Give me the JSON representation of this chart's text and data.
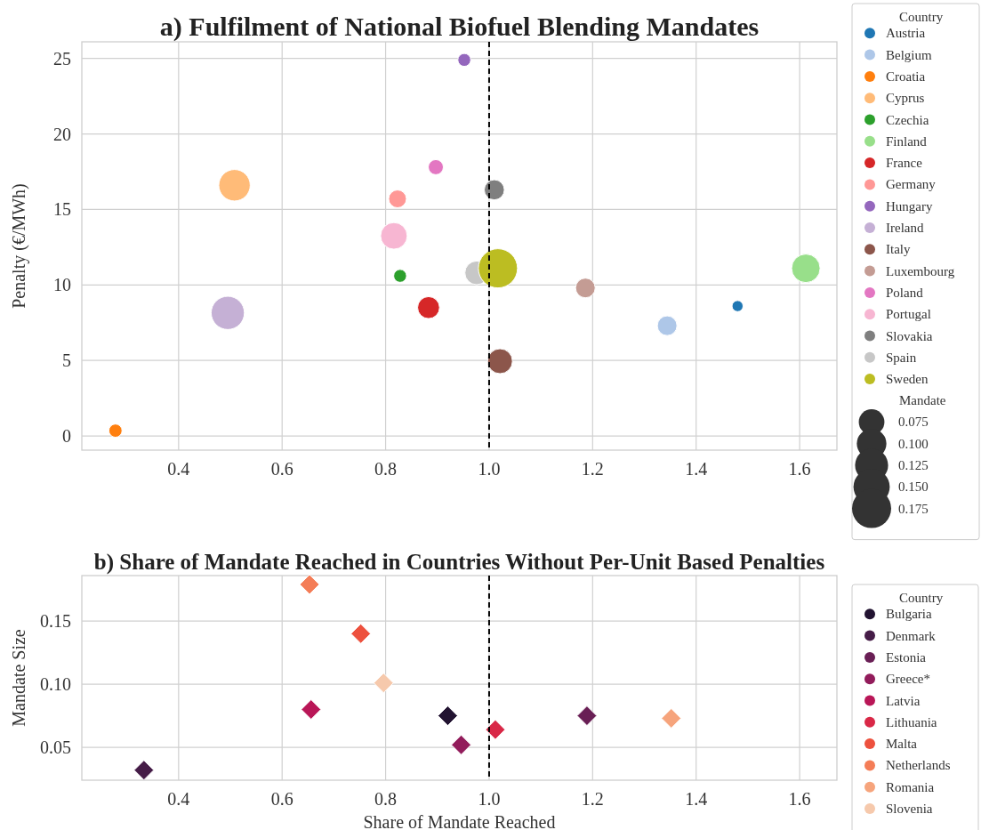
{
  "chart_data": [
    {
      "type": "bubble",
      "title": "a) Fulfilment of National Biofuel Blending Mandates",
      "ylabel": "Penalty (€/MWh)",
      "legend_title": "Country",
      "annotations": [
        "Mandate"
      ],
      "legend": "right",
      "grid": true,
      "xlim": [
        0.213,
        1.672
      ],
      "ylim": [
        -0.94,
        26.1
      ],
      "xticks": [
        0.4,
        0.6,
        0.8,
        {
          "value": 1,
          "label": "1.0"
        },
        1.2,
        1.4,
        1.6
      ],
      "yticks": [
        0,
        5,
        10,
        15,
        20,
        25
      ],
      "size_legend": [
        0.075,
        {
          "value": 0.1,
          "label": "0.100"
        },
        0.125,
        {
          "value": 0.15,
          "label": "0.150"
        },
        0.175
      ],
      "ref_lines": [
        {
          "axis": "x",
          "value": 1,
          "color": "#000000",
          "line_style": "dashed"
        }
      ],
      "series": [
        {
          "name": "Austria",
          "color": "#1f77b4",
          "x": [
            1.48
          ],
          "values": [
            8.6
          ],
          "sizes": [
            0.014
          ]
        },
        {
          "name": "Belgium",
          "color": "#aec7e8",
          "x": [
            1.344
          ],
          "values": [
            7.3
          ],
          "sizes": [
            0.044
          ]
        },
        {
          "name": "Croatia",
          "color": "#ff7f0e",
          "x": [
            0.278
          ],
          "values": [
            0.35
          ],
          "sizes": [
            0.02
          ]
        },
        {
          "name": "Cyprus",
          "color": "#ffbb78",
          "x": [
            0.508
          ],
          "values": [
            16.6
          ],
          "sizes": [
            0.113
          ]
        },
        {
          "name": "Czechia",
          "color": "#2ca02c",
          "x": [
            0.828
          ],
          "values": [
            10.6
          ],
          "sizes": [
            0.019
          ]
        },
        {
          "name": "Finland",
          "color": "#98df8a",
          "x": [
            1.612
          ],
          "values": [
            11.1
          ],
          "sizes": [
            0.093
          ]
        },
        {
          "name": "France",
          "color": "#d62728",
          "x": [
            0.883
          ],
          "values": [
            8.5
          ],
          "sizes": [
            0.055
          ]
        },
        {
          "name": "Germany",
          "color": "#ff9896",
          "x": [
            0.823
          ],
          "values": [
            15.7
          ],
          "sizes": [
            0.036
          ]
        },
        {
          "name": "Hungary",
          "color": "#9467bd",
          "x": [
            0.952
          ],
          "values": [
            24.9
          ],
          "sizes": [
            0.019
          ]
        },
        {
          "name": "Ireland",
          "color": "#c5b0d5",
          "x": [
            0.495
          ],
          "values": [
            8.15
          ],
          "sizes": [
            0.126
          ]
        },
        {
          "name": "Italy",
          "color": "#8c564b",
          "x": [
            1.021
          ],
          "values": [
            4.95
          ],
          "sizes": [
            0.071
          ]
        },
        {
          "name": "Luxembourg",
          "color": "#c49c94",
          "x": [
            1.186
          ],
          "values": [
            9.8
          ],
          "sizes": [
            0.044
          ]
        },
        {
          "name": "Poland",
          "color": "#e377c2",
          "x": [
            0.897
          ],
          "values": [
            17.8
          ],
          "sizes": [
            0.026
          ]
        },
        {
          "name": "Portugal",
          "color": "#f7b6d2",
          "x": [
            0.816
          ],
          "values": [
            13.25
          ],
          "sizes": [
            0.081
          ]
        },
        {
          "name": "Slovakia",
          "color": "#7f7f7f",
          "x": [
            1.01
          ],
          "values": [
            16.3
          ],
          "sizes": [
            0.046
          ]
        },
        {
          "name": "Spain",
          "color": "#c7c7c7",
          "x": [
            0.976
          ],
          "values": [
            10.8
          ],
          "sizes": [
            0.064
          ]
        },
        {
          "name": "Sweden",
          "color": "#bcbd22",
          "x": [
            1.017
          ],
          "values": [
            11.1
          ],
          "sizes": [
            0.175
          ]
        }
      ]
    },
    {
      "type": "scatter",
      "title": "b) Share of Mandate Reached in Countries Without Per-Unit Based Penalties",
      "xlabel": "Share of Mandate Reached",
      "ylabel": "Mandate Size",
      "legend_title": "Country",
      "legend": "right",
      "grid": true,
      "marker": "diamond",
      "xlim": [
        0.213,
        1.672
      ],
      "ylim": [
        0.024,
        0.186
      ],
      "xticks": [
        0.4,
        0.6,
        0.8,
        {
          "value": 1,
          "label": "1.0"
        },
        1.2,
        1.4,
        1.6
      ],
      "yticks": [
        0.05,
        {
          "value": 0.1,
          "label": "0.10"
        },
        0.15
      ],
      "ref_lines": [
        {
          "axis": "x",
          "value": 1,
          "color": "#000000",
          "line_style": "dashed"
        }
      ],
      "series": [
        {
          "name": "Bulgaria",
          "color": "#221331",
          "x": [
            0.92
          ],
          "values": [
            0.075
          ]
        },
        {
          "name": "Denmark",
          "color": "#451c47",
          "x": [
            0.333
          ],
          "values": [
            0.032
          ]
        },
        {
          "name": "Estonia",
          "color": "#691f55",
          "x": [
            1.189
          ],
          "values": [
            0.075
          ]
        },
        {
          "name": "Greece*",
          "color": "#921c5b",
          "x": [
            0.946
          ],
          "values": [
            0.052
          ]
        },
        {
          "name": "Latvia",
          "color": "#b91657",
          "x": [
            0.656
          ],
          "values": [
            0.08
          ]
        },
        {
          "name": "Lithuania",
          "color": "#d92847",
          "x": [
            1.012
          ],
          "values": [
            0.064
          ]
        },
        {
          "name": "Malta",
          "color": "#ed513e",
          "x": [
            0.752
          ],
          "values": [
            0.14
          ]
        },
        {
          "name": "Netherlands",
          "color": "#f47d57",
          "x": [
            0.653
          ],
          "values": [
            0.179
          ]
        },
        {
          "name": "Romania",
          "color": "#f6a47c",
          "x": [
            1.352
          ],
          "values": [
            0.073
          ]
        },
        {
          "name": "Slovenia",
          "color": "#f6c9ac",
          "x": [
            0.796
          ],
          "values": [
            0.101
          ]
        }
      ]
    }
  ]
}
